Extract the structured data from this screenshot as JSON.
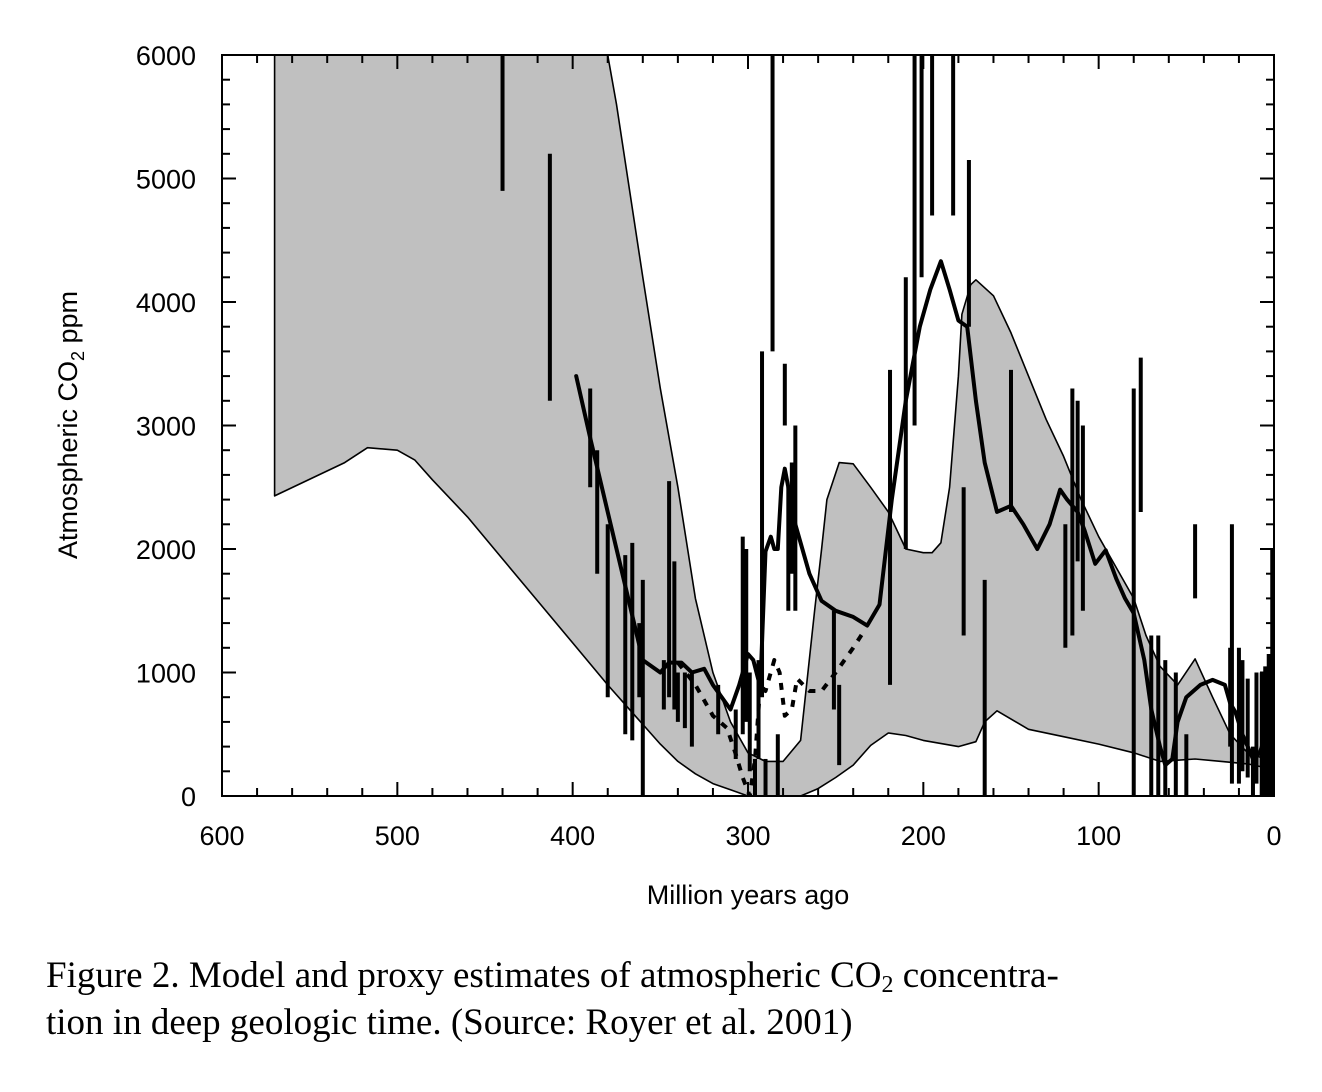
{
  "chart_data": {
    "type": "line",
    "xlabel": "Million years ago",
    "ylabel": {
      "pre": "Atmospheric CO",
      "sub": "2",
      "post": " ppm"
    },
    "xlim": [
      600,
      0
    ],
    "ylim": [
      0,
      6000
    ],
    "x_ticks": [
      600,
      500,
      400,
      300,
      200,
      100,
      0
    ],
    "y_ticks": [
      0,
      1000,
      2000,
      3000,
      4000,
      5000,
      6000
    ],
    "grid": false,
    "band_upper": [
      [
        570,
        6000
      ],
      [
        555,
        6000
      ],
      [
        530,
        6000
      ],
      [
        500,
        6000
      ],
      [
        480,
        6000
      ],
      [
        470,
        6000
      ],
      [
        450,
        6000
      ],
      [
        420,
        6000
      ],
      [
        380,
        6000
      ],
      [
        375,
        5600
      ],
      [
        360,
        4200
      ],
      [
        350,
        3300
      ],
      [
        340,
        2500
      ],
      [
        330,
        1600
      ],
      [
        320,
        1000
      ],
      [
        310,
        600
      ],
      [
        300,
        350
      ],
      [
        290,
        280
      ],
      [
        280,
        280
      ],
      [
        270,
        450
      ],
      [
        262,
        1500
      ],
      [
        258,
        2000
      ],
      [
        255,
        2400
      ],
      [
        248,
        2700
      ],
      [
        240,
        2690
      ],
      [
        230,
        2500
      ],
      [
        220,
        2300
      ],
      [
        210,
        2000
      ],
      [
        200,
        1970
      ],
      [
        195,
        1970
      ],
      [
        190,
        2050
      ],
      [
        185,
        2500
      ],
      [
        180,
        3400
      ],
      [
        178,
        3900
      ],
      [
        173,
        4140
      ],
      [
        170,
        4180
      ],
      [
        160,
        4050
      ],
      [
        150,
        3750
      ],
      [
        140,
        3400
      ],
      [
        130,
        3050
      ],
      [
        120,
        2750
      ],
      [
        110,
        2400
      ],
      [
        100,
        2100
      ],
      [
        90,
        1850
      ],
      [
        80,
        1600
      ],
      [
        73,
        1300
      ],
      [
        65,
        1050
      ],
      [
        55,
        900
      ],
      [
        45,
        1110
      ],
      [
        35,
        800
      ],
      [
        25,
        500
      ],
      [
        15,
        350
      ],
      [
        5,
        300
      ],
      [
        0,
        280
      ]
    ],
    "band_lower": [
      [
        0,
        200
      ],
      [
        5,
        230
      ],
      [
        15,
        260
      ],
      [
        30,
        280
      ],
      [
        45,
        300
      ],
      [
        55,
        290
      ],
      [
        65,
        280
      ],
      [
        80,
        350
      ],
      [
        100,
        420
      ],
      [
        120,
        480
      ],
      [
        140,
        540
      ],
      [
        158,
        690
      ],
      [
        165,
        600
      ],
      [
        170,
        440
      ],
      [
        180,
        400
      ],
      [
        200,
        450
      ],
      [
        210,
        490
      ],
      [
        220,
        510
      ],
      [
        230,
        410
      ],
      [
        240,
        250
      ],
      [
        250,
        150
      ],
      [
        260,
        60
      ],
      [
        270,
        0
      ],
      [
        290,
        0
      ],
      [
        295,
        0
      ],
      [
        300,
        0
      ],
      [
        310,
        50
      ],
      [
        320,
        100
      ],
      [
        330,
        180
      ],
      [
        340,
        280
      ],
      [
        350,
        420
      ],
      [
        360,
        580
      ],
      [
        380,
        900
      ],
      [
        400,
        1240
      ],
      [
        420,
        1580
      ],
      [
        440,
        1920
      ],
      [
        460,
        2260
      ],
      [
        480,
        2560
      ],
      [
        490,
        2720
      ],
      [
        500,
        2800
      ],
      [
        517,
        2820
      ],
      [
        530,
        2700
      ],
      [
        570,
        2430
      ]
    ],
    "series": [
      {
        "style": "solid",
        "points": [
          [
            398,
            3400
          ],
          [
            390,
            2900
          ],
          [
            380,
            2300
          ],
          [
            370,
            1700
          ],
          [
            360,
            1100
          ],
          [
            350,
            1000
          ],
          [
            345,
            1080
          ],
          [
            338,
            1080
          ],
          [
            332,
            1000
          ],
          [
            325,
            1030
          ],
          [
            320,
            900
          ],
          [
            315,
            800
          ],
          [
            310,
            700
          ],
          [
            305,
            900
          ],
          [
            300,
            1150
          ],
          [
            297,
            1100
          ],
          [
            293,
            880
          ],
          [
            290,
            1980
          ],
          [
            287,
            2100
          ],
          [
            285,
            2000
          ],
          [
            283,
            2000
          ],
          [
            281,
            2500
          ],
          [
            279,
            2650
          ],
          [
            277,
            2500
          ],
          [
            275,
            2300
          ],
          [
            270,
            2050
          ],
          [
            265,
            1800
          ],
          [
            258,
            1580
          ],
          [
            250,
            1500
          ],
          [
            240,
            1450
          ],
          [
            232,
            1380
          ],
          [
            225,
            1550
          ],
          [
            218,
            2400
          ],
          [
            210,
            3200
          ],
          [
            202,
            3800
          ],
          [
            196,
            4100
          ],
          [
            190,
            4330
          ],
          [
            185,
            4100
          ],
          [
            180,
            3850
          ],
          [
            175,
            3800
          ],
          [
            170,
            3200
          ],
          [
            165,
            2700
          ],
          [
            158,
            2300
          ],
          [
            150,
            2350
          ],
          [
            143,
            2200
          ],
          [
            135,
            2000
          ],
          [
            128,
            2200
          ],
          [
            122,
            2480
          ],
          [
            118,
            2400
          ],
          [
            112,
            2300
          ],
          [
            108,
            2150
          ],
          [
            102,
            1880
          ],
          [
            96,
            1990
          ],
          [
            90,
            1760
          ],
          [
            85,
            1600
          ],
          [
            80,
            1480
          ],
          [
            74,
            1100
          ],
          [
            70,
            700
          ],
          [
            65,
            400
          ],
          [
            62,
            250
          ],
          [
            58,
            300
          ],
          [
            55,
            600
          ],
          [
            50,
            800
          ],
          [
            42,
            900
          ],
          [
            35,
            940
          ],
          [
            28,
            900
          ],
          [
            25,
            750
          ],
          [
            22,
            680
          ],
          [
            18,
            500
          ],
          [
            15,
            400
          ],
          [
            12,
            300
          ],
          [
            8,
            350
          ],
          [
            5,
            500
          ],
          [
            2,
            700
          ],
          [
            0,
            900
          ]
        ]
      },
      {
        "style": "dashed",
        "points": [
          [
            340,
            1080
          ],
          [
            330,
            900
          ],
          [
            320,
            650
          ],
          [
            312,
            550
          ],
          [
            307,
            340
          ],
          [
            303,
            150
          ],
          [
            299,
            0
          ],
          [
            296,
            300
          ],
          [
            293,
            900
          ],
          [
            290,
            850
          ],
          [
            285,
            1100
          ],
          [
            282,
            1000
          ],
          [
            279,
            650
          ],
          [
            275,
            700
          ],
          [
            272,
            950
          ],
          [
            265,
            850
          ],
          [
            258,
            850
          ],
          [
            250,
            1000
          ],
          [
            240,
            1200
          ],
          [
            235,
            1310
          ]
        ]
      }
    ],
    "proxy_bars": [
      [
        440,
        4900,
        6000
      ],
      [
        413,
        3200,
        5200
      ],
      [
        390,
        2500,
        3300
      ],
      [
        386,
        1800,
        2800
      ],
      [
        380,
        800,
        2200
      ],
      [
        370,
        500,
        1950
      ],
      [
        366,
        450,
        2050
      ],
      [
        362,
        800,
        1400
      ],
      [
        360,
        0,
        1750
      ],
      [
        348,
        700,
        1100
      ],
      [
        345,
        800,
        2550
      ],
      [
        342,
        700,
        1900
      ],
      [
        340,
        600,
        1000
      ],
      [
        336,
        550,
        1000
      ],
      [
        332,
        400,
        1000
      ],
      [
        317,
        500,
        900
      ],
      [
        307,
        300,
        700
      ],
      [
        303,
        500,
        2100
      ],
      [
        301,
        600,
        2000
      ],
      [
        299,
        200,
        1000
      ],
      [
        296,
        0,
        300
      ],
      [
        294,
        300,
        1100
      ],
      [
        292,
        800,
        3600
      ],
      [
        290,
        0,
        300
      ],
      [
        286,
        3600,
        6000
      ],
      [
        283,
        0,
        500
      ],
      [
        279,
        3000,
        3500
      ],
      [
        277,
        1500,
        2500
      ],
      [
        275,
        1800,
        2700
      ],
      [
        273,
        1500,
        3000
      ],
      [
        251,
        700,
        1500
      ],
      [
        248,
        250,
        900
      ],
      [
        219,
        900,
        3450
      ],
      [
        210,
        2000,
        4200
      ],
      [
        205,
        3000,
        6000
      ],
      [
        201,
        4200,
        6000
      ],
      [
        195,
        4700,
        6000
      ],
      [
        183,
        4700,
        6000
      ],
      [
        177,
        1300,
        2500
      ],
      [
        174,
        3800,
        5150
      ],
      [
        165,
        0,
        1750
      ],
      [
        150,
        2300,
        3450
      ],
      [
        119,
        1200,
        2200
      ],
      [
        115,
        1300,
        3300
      ],
      [
        112,
        1900,
        3200
      ],
      [
        109,
        1500,
        3000
      ],
      [
        80,
        0,
        3300
      ],
      [
        76,
        2300,
        3550
      ],
      [
        70,
        0,
        1300
      ],
      [
        66,
        0,
        1300
      ],
      [
        62,
        0,
        1100
      ],
      [
        56,
        0,
        1000
      ],
      [
        50,
        0,
        500
      ],
      [
        45,
        1600,
        2200
      ],
      [
        25,
        400,
        1200
      ],
      [
        24,
        2200,
        100
      ],
      [
        20,
        100,
        1200
      ],
      [
        18,
        200,
        1100
      ],
      [
        15,
        150,
        950
      ],
      [
        12,
        0,
        400
      ],
      [
        10,
        100,
        1000
      ],
      [
        7,
        0,
        1000
      ],
      [
        5,
        0,
        1050
      ],
      [
        3,
        0,
        1150
      ],
      [
        1,
        0,
        2000
      ]
    ]
  },
  "caption": {
    "line1_pre": "Figure 2. Model and proxy estimates of atmospheric CO",
    "line1_sub": "2",
    "line1_post": " concentra-",
    "line2": "tion in deep geologic time. (Source: Royer et al. 2001)"
  }
}
